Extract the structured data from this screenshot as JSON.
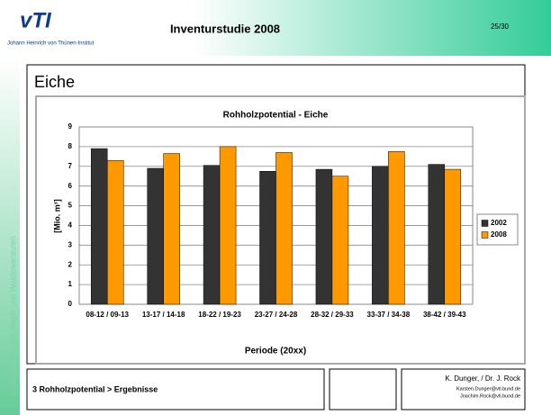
{
  "slide": {
    "logo": "vTI",
    "logo_sub": "Johann Heinrich von Thünen-Institut",
    "header": "Inventurstudie 2008",
    "page": "25/30",
    "side": "Institut für Waldökologie und Waldinventuren",
    "heading": "Eiche",
    "footer": "3 Rohholzpotential > Ergebnisse",
    "authors": "K. Dunger, / Dr. J. Rock",
    "email1": "Karsten.Dunger@vti.bund.de",
    "email2": "Joachim.Rock@vti.bund.de"
  },
  "chart_data": {
    "type": "bar",
    "title": "Rohholzpotential - Eiche",
    "x_label": "Periode (20xx)",
    "y_label": "[Mio. m³]",
    "categories": [
      "08-12 / 09-13",
      "13-17 / 14-18",
      "18-22 / 19-23",
      "23-27 / 24-28",
      "28-32 / 29-33",
      "33-37 / 34-38",
      "38-42 / 39-43"
    ],
    "series": [
      {
        "name": "2002",
        "color": "#333333",
        "values": [
          7.9,
          6.9,
          7.05,
          6.75,
          6.85,
          7.0,
          7.1
        ]
      },
      {
        "name": "2008",
        "color": "#ff9900",
        "values": [
          7.3,
          7.65,
          8.0,
          7.7,
          6.5,
          7.75,
          6.85
        ]
      }
    ],
    "ylim": [
      0,
      9
    ],
    "yticks": [
      0,
      1,
      2,
      3,
      4,
      5,
      6,
      7,
      8,
      9
    ],
    "grid": true,
    "legend": "right"
  }
}
